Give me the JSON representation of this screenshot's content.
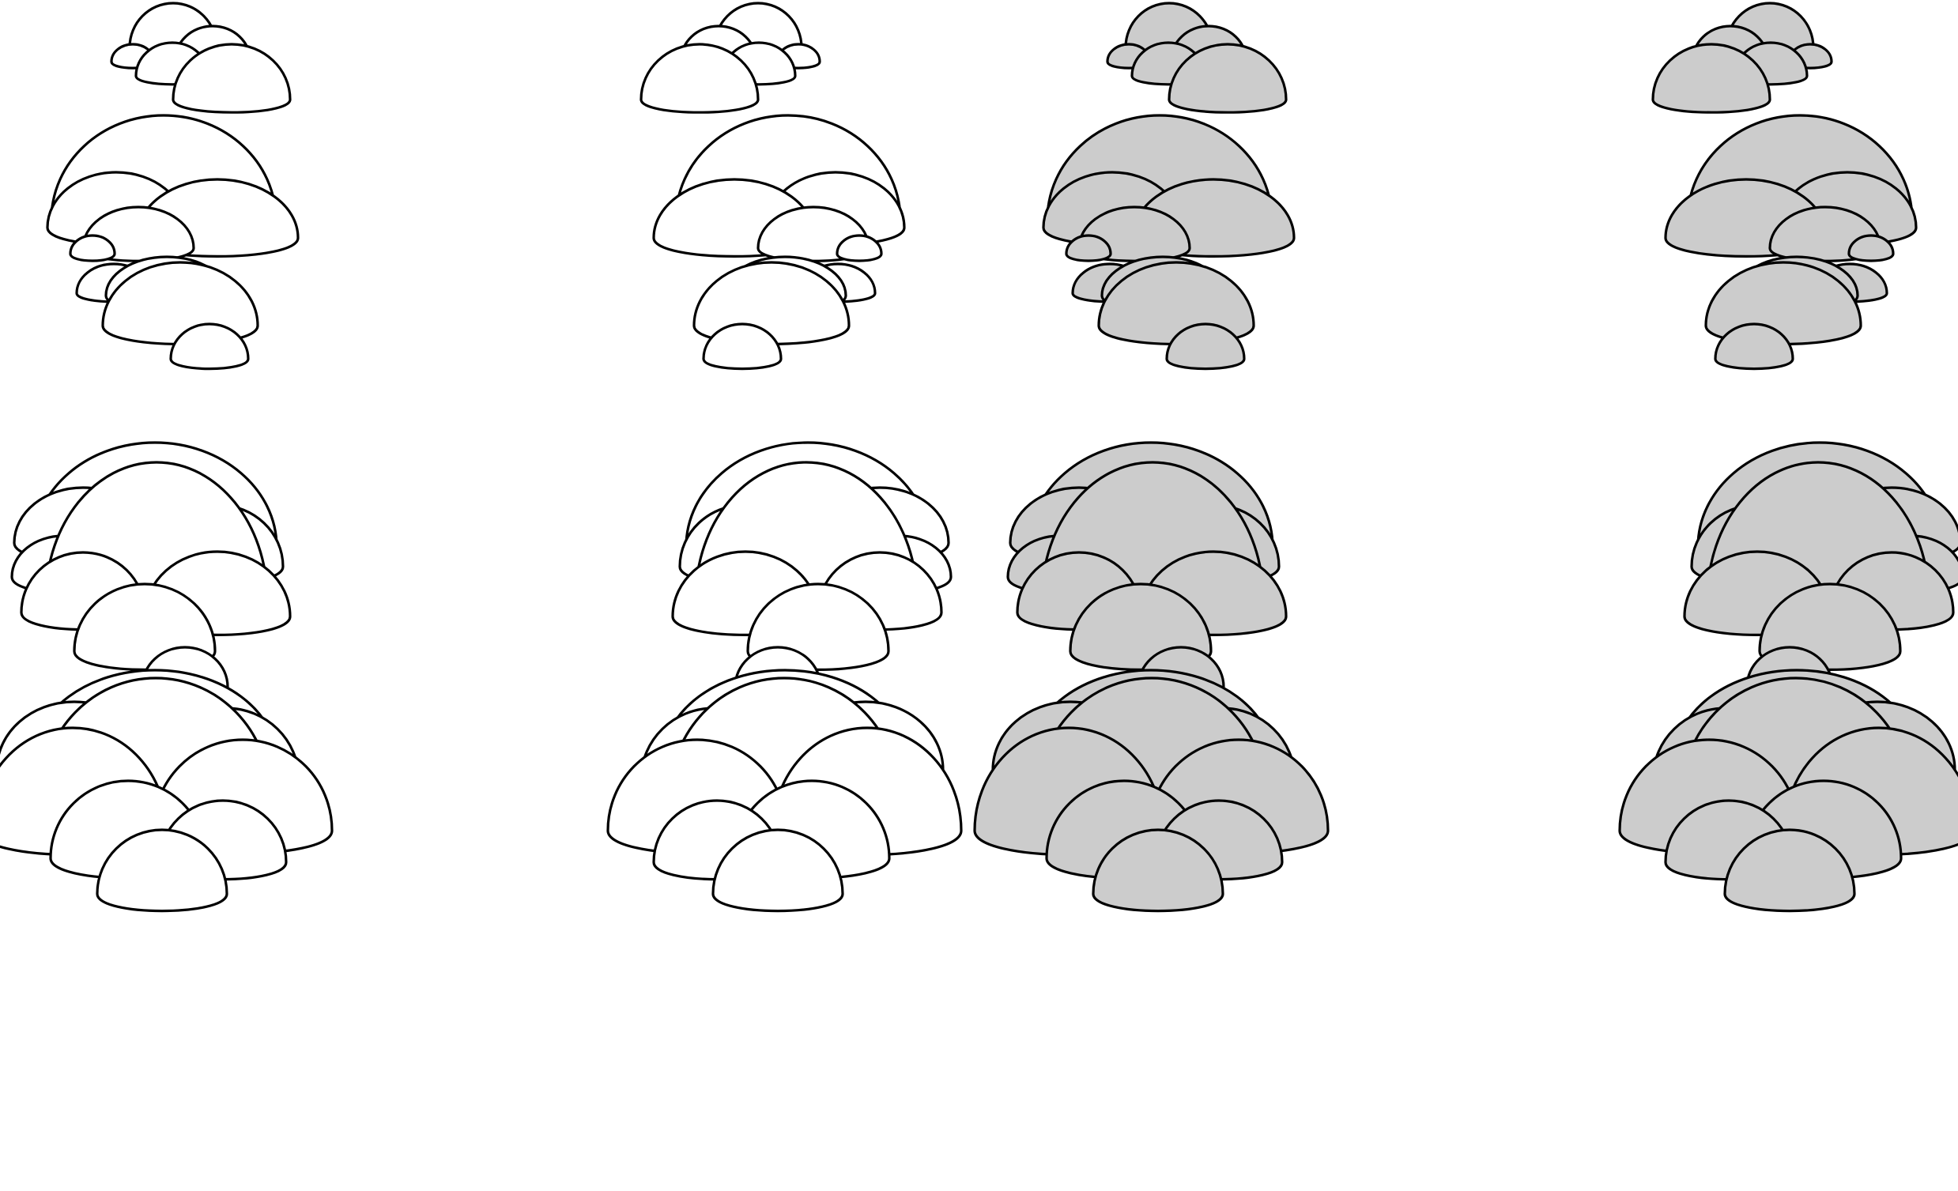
{
  "sheet": {
    "rows": 4,
    "columns": 4,
    "style": "cartoon clouds built from overlapping half-dome puffs",
    "column_fills": [
      "#ffffff",
      "#ffffff",
      "#cccccc",
      "#cccccc"
    ],
    "column_mirrored": [
      false,
      true,
      false,
      true
    ],
    "stroke_color": "#000000",
    "background_color": "#ffffff",
    "items": [
      {
        "name": "cloud-small-white",
        "row": 1,
        "column": 1,
        "puff_count": 5
      },
      {
        "name": "cloud-small-white-mirrored",
        "row": 1,
        "column": 2,
        "puff_count": 5
      },
      {
        "name": "cloud-small-grey",
        "row": 1,
        "column": 3,
        "puff_count": 5
      },
      {
        "name": "cloud-small-grey-mirrored",
        "row": 1,
        "column": 4,
        "puff_count": 5
      },
      {
        "name": "cloud-medium-white",
        "row": 2,
        "column": 1,
        "puff_count": 8
      },
      {
        "name": "cloud-medium-white-mirrored",
        "row": 2,
        "column": 2,
        "puff_count": 8
      },
      {
        "name": "cloud-medium-grey",
        "row": 2,
        "column": 3,
        "puff_count": 8
      },
      {
        "name": "cloud-medium-grey-mirrored",
        "row": 2,
        "column": 4,
        "puff_count": 8
      },
      {
        "name": "cloud-large-white",
        "row": 3,
        "column": 1,
        "puff_count": 9
      },
      {
        "name": "cloud-large-white-mirrored",
        "row": 3,
        "column": 2,
        "puff_count": 9
      },
      {
        "name": "cloud-large-grey",
        "row": 3,
        "column": 3,
        "puff_count": 9
      },
      {
        "name": "cloud-large-grey-mirrored",
        "row": 3,
        "column": 4,
        "puff_count": 9
      },
      {
        "name": "cloud-xlarge-white",
        "row": 4,
        "column": 1,
        "puff_count": 8
      },
      {
        "name": "cloud-xlarge-white-mirrored",
        "row": 4,
        "column": 2,
        "puff_count": 8
      },
      {
        "name": "cloud-xlarge-grey",
        "row": 4,
        "column": 3,
        "puff_count": 8
      },
      {
        "name": "cloud-xlarge-grey-mirrored",
        "row": 4,
        "column": 4,
        "puff_count": 8
      }
    ]
  }
}
